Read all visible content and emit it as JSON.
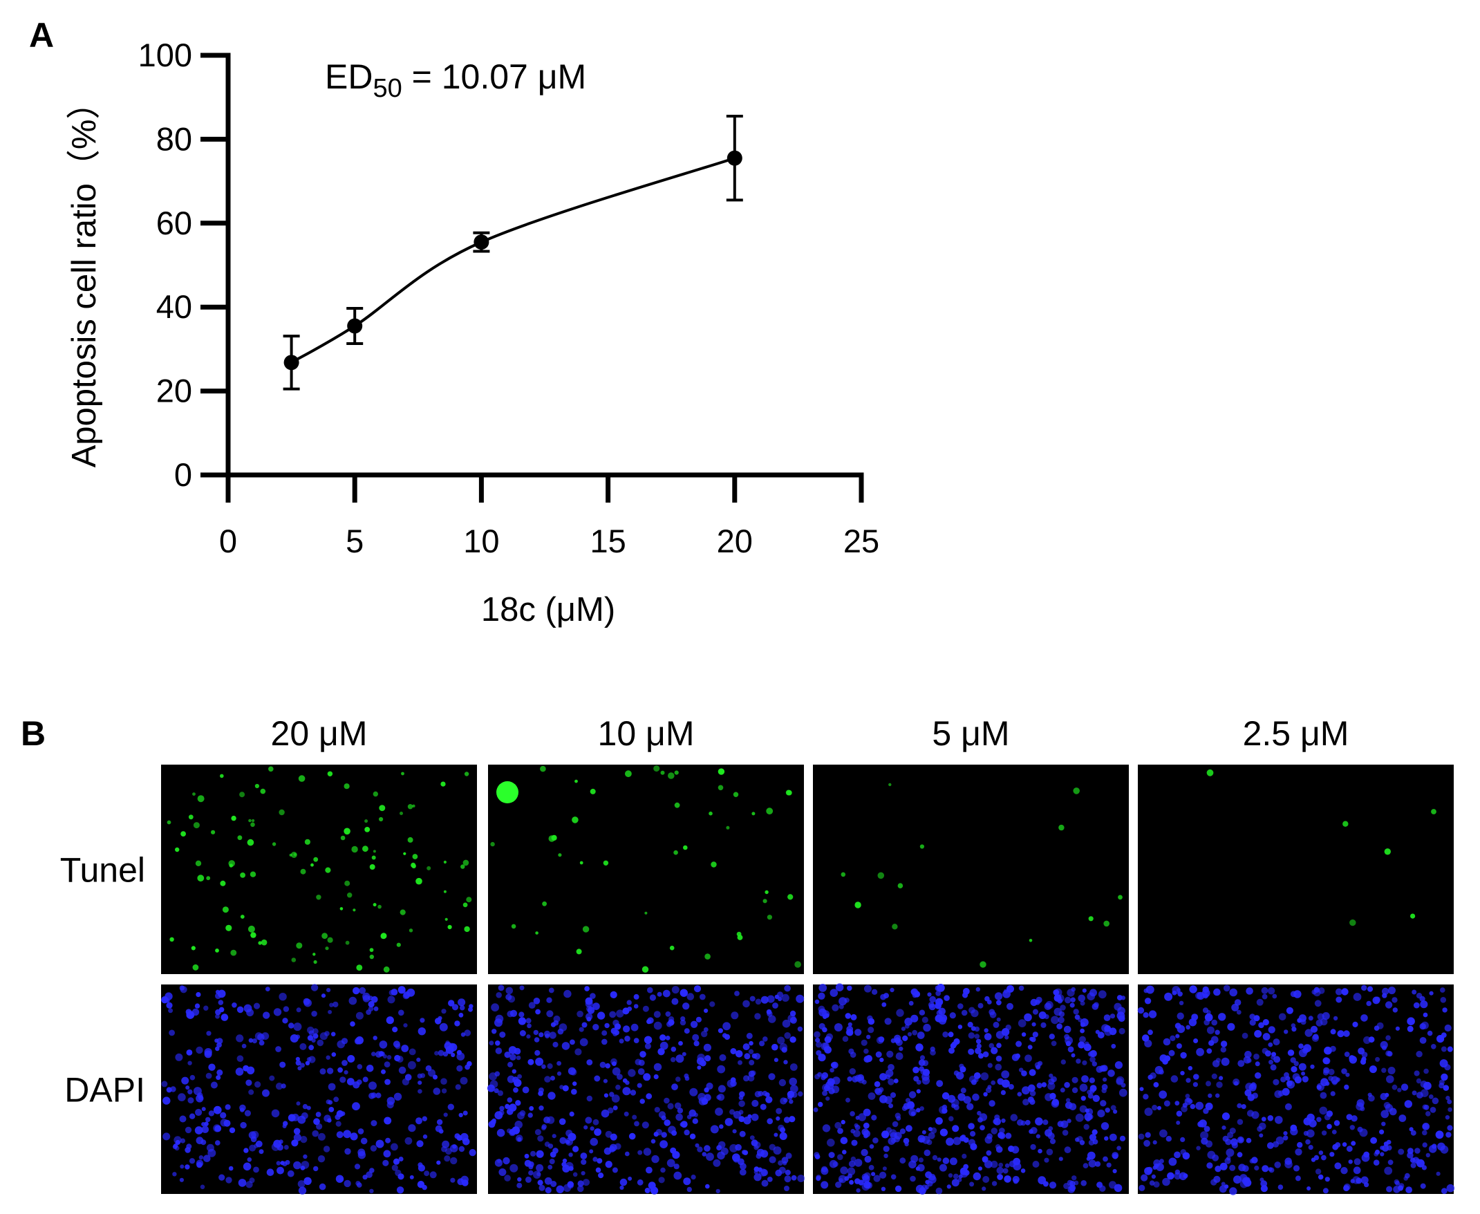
{
  "panel_a": {
    "letter": "A"
  },
  "panel_b": {
    "letter": "B"
  },
  "chart_data": {
    "type": "scatter",
    "xlabel": "18c (μM)",
    "ylabel": "Apoptosis cell ratio（%）",
    "xlim": [
      0,
      25
    ],
    "ylim": [
      0,
      100
    ],
    "x_ticks": [
      "0",
      "5",
      "10",
      "15",
      "20",
      "25"
    ],
    "y_ticks": [
      "0",
      "20",
      "40",
      "60",
      "80",
      "100"
    ],
    "grid": false,
    "series": [
      {
        "x": [
          2.5,
          5,
          10,
          20
        ],
        "y": [
          26.8,
          35.5,
          55.5,
          75.5
        ],
        "error": [
          6.3,
          4.2,
          2.2,
          10.0
        ],
        "fit_curve": true
      }
    ],
    "annotation": {
      "prefix": "ED",
      "subscript": "50",
      "suffix": " = 10.07 μM"
    }
  },
  "micrographs": {
    "columns": [
      "20 μM",
      "10 μM",
      "5 μM",
      "2.5 μM"
    ],
    "rows": [
      {
        "label": "Tunel",
        "stain_color": "#1fe81f",
        "cells_per_panel": [
          110,
          45,
          14,
          6
        ]
      },
      {
        "label": "DAPI",
        "stain_color": "#2a2aff",
        "cells_per_panel": [
          420,
          520,
          640,
          520
        ]
      }
    ]
  }
}
